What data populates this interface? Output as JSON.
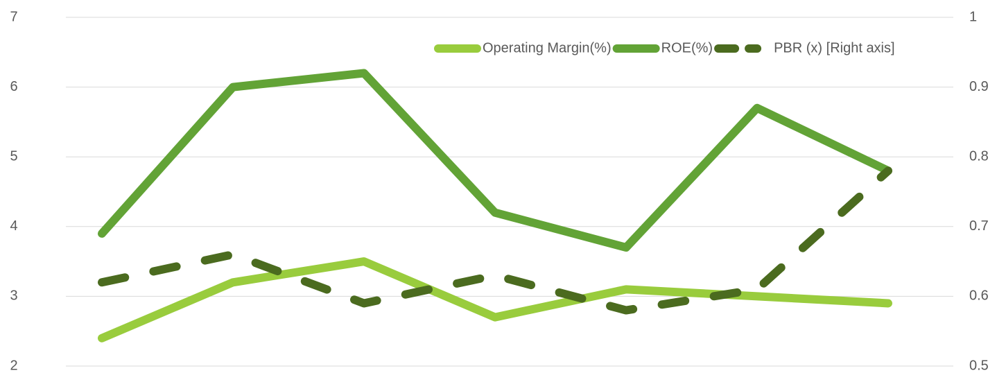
{
  "chart_data": {
    "type": "line",
    "categories": [
      null,
      null,
      null,
      null,
      null,
      null,
      null
    ],
    "series": [
      {
        "name": "Operating Margin(%)",
        "color": "#99cc3d",
        "values": [
          2.4,
          3.2,
          3.5,
          2.7,
          3.1,
          3.0,
          2.9
        ]
      },
      {
        "name": "ROE(%)",
        "color": "#62a336",
        "values": [
          3.9,
          6.0,
          6.2,
          4.2,
          3.7,
          5.7,
          4.8
        ]
      },
      {
        "name": "PBR (x) [Right axis]",
        "color": "#4b6b1f",
        "axis": "y2",
        "dashed": true,
        "values": [
          0.62,
          0.66,
          0.59,
          0.63,
          0.58,
          0.61,
          0.78
        ]
      }
    ],
    "ylim": [
      2,
      7
    ],
    "yticks": [
      2,
      3,
      4,
      5,
      6,
      7
    ],
    "y2lim": [
      0.5,
      1
    ],
    "y2ticks": [
      0.5,
      0.6,
      0.7,
      0.8,
      0.9,
      1
    ],
    "grid": true,
    "legend": "upper right"
  }
}
